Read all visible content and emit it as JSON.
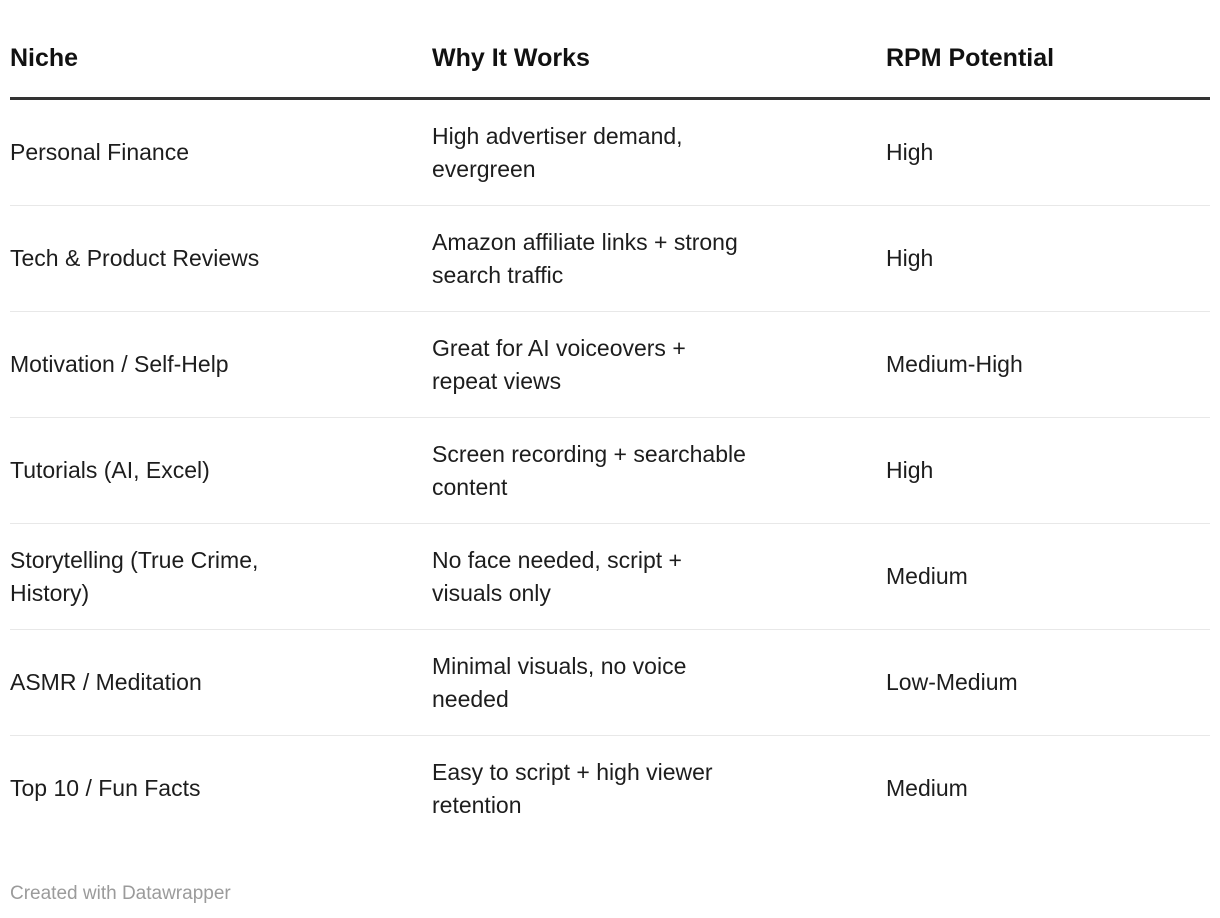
{
  "chart_data": {
    "type": "table",
    "columns": [
      "Niche",
      "Why It Works",
      "RPM Potential"
    ],
    "rows": [
      [
        "Personal Finance",
        "High advertiser demand,\nevergreen",
        "High"
      ],
      [
        "Tech & Product Reviews",
        "Amazon affiliate links + strong\nsearch traffic",
        "High"
      ],
      [
        "Motivation / Self-Help",
        "Great for AI voiceovers +\nrepeat views",
        "Medium-High"
      ],
      [
        "Tutorials (AI, Excel)",
        "Screen recording + searchable\ncontent",
        "High"
      ],
      [
        "Storytelling (True Crime,\nHistory)",
        "No face needed, script +\nvisuals only",
        "Medium"
      ],
      [
        "ASMR / Meditation",
        "Minimal visuals, no voice\nneeded",
        "Low-Medium"
      ],
      [
        "Top 10 / Fun Facts",
        "Easy to script + high viewer\nretention",
        "Medium"
      ]
    ],
    "layout_hints": {
      "header_rule_color": "#333333",
      "row_divider_color": "#e8e8e8",
      "text_color": "#1d1d1d",
      "footer_text_color": "#9b9b9b",
      "grid": "horizontal-only"
    }
  },
  "footer": {
    "attribution": "Created with Datawrapper"
  }
}
